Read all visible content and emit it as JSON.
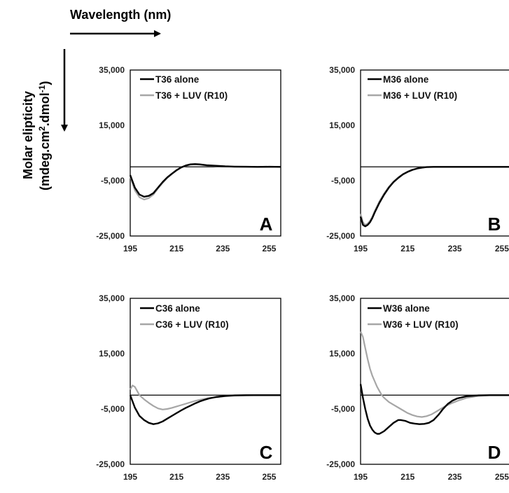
{
  "figure": {
    "x_direction_label": "Wavelength (nm)",
    "y_direction_label_line1": "Molar elipticity",
    "y_direction_label_line2_pre": "(mdeg.cm",
    "y_direction_label_line2_sup1": "2",
    "y_direction_label_line2_mid": ".dmol",
    "y_direction_label_line2_sup2": "-1",
    "y_direction_label_line2_post": ")"
  },
  "colors": {
    "alone": "#000000",
    "luv": "#a6a6a6",
    "zero_line": "#000000",
    "frame": "#000000"
  },
  "chart_data": [
    {
      "type": "line",
      "panel_letter": "A",
      "xlim": [
        195,
        260
      ],
      "ylim": [
        -25000,
        35000
      ],
      "x_ticks": [
        "195",
        "215",
        "235",
        "255"
      ],
      "y_ticks": [
        "35,000",
        "15,000",
        "-5,000",
        "-25,000"
      ],
      "y_tick_values": [
        35000,
        15000,
        -5000,
        -25000
      ],
      "x_tick_values": [
        195,
        215,
        235,
        255
      ],
      "series": [
        {
          "name": "T36 alone",
          "color_key": "alone",
          "x": [
            195,
            197,
            199,
            201,
            203,
            205,
            207,
            209,
            211,
            213,
            215,
            217,
            219,
            221,
            223,
            225,
            228,
            232,
            236,
            240,
            245,
            250,
            255,
            260
          ],
          "y": [
            -3000,
            -7500,
            -10000,
            -10800,
            -10500,
            -9500,
            -7500,
            -5500,
            -3800,
            -2500,
            -1200,
            -200,
            500,
            900,
            1000,
            900,
            600,
            400,
            200,
            100,
            50,
            0,
            50,
            0
          ]
        },
        {
          "name": "T36 + LUV (R10)",
          "color_key": "luv",
          "x": [
            195,
            197,
            199,
            201,
            203,
            205,
            207,
            209,
            211,
            213,
            215,
            217,
            219,
            221,
            223,
            225,
            228,
            232,
            236,
            240,
            245,
            250,
            255,
            260
          ],
          "y": [
            -3500,
            -8500,
            -11000,
            -11800,
            -11300,
            -10000,
            -7800,
            -5800,
            -4000,
            -2600,
            -1300,
            -300,
            400,
            800,
            900,
            800,
            500,
            300,
            150,
            50,
            0,
            0,
            0,
            0
          ]
        }
      ]
    },
    {
      "type": "line",
      "panel_letter": "B",
      "xlim": [
        195,
        258
      ],
      "ylim": [
        -25000,
        35000
      ],
      "x_ticks": [
        "195",
        "215",
        "235",
        "255"
      ],
      "y_ticks": [
        "35,000",
        "15,000",
        "-5,000",
        "-25,000"
      ],
      "y_tick_values": [
        35000,
        15000,
        -5000,
        -25000
      ],
      "x_tick_values": [
        195,
        215,
        235,
        255
      ],
      "series": [
        {
          "name": "M36 alone",
          "color_key": "alone",
          "x": [
            195,
            196,
            197,
            198,
            199,
            200,
            201,
            203,
            205,
            207,
            209,
            211,
            213,
            215,
            217,
            219,
            221,
            223,
            226,
            230,
            235,
            240,
            245,
            250,
            258
          ],
          "y": [
            -18000,
            -21000,
            -21500,
            -21000,
            -20000,
            -18500,
            -16500,
            -13000,
            -10000,
            -7500,
            -5500,
            -4000,
            -2700,
            -1800,
            -1100,
            -600,
            -300,
            -100,
            0,
            0,
            0,
            0,
            0,
            0,
            0
          ]
        },
        {
          "name": "M36 + LUV (R10)",
          "color_key": "luv",
          "x": [
            195,
            196,
            197,
            198,
            199,
            200,
            201,
            203,
            205,
            207,
            209,
            211,
            213,
            215,
            217,
            219,
            221,
            223,
            226,
            230,
            235,
            240,
            245,
            250,
            258
          ],
          "y": [
            -17000,
            -20000,
            -21000,
            -20500,
            -19500,
            -18000,
            -16000,
            -12500,
            -9600,
            -7200,
            -5300,
            -3800,
            -2600,
            -1700,
            -1000,
            -600,
            -300,
            -100,
            0,
            0,
            0,
            0,
            0,
            0,
            0
          ]
        }
      ]
    },
    {
      "type": "line",
      "panel_letter": "C",
      "xlim": [
        195,
        260
      ],
      "ylim": [
        -25000,
        35000
      ],
      "x_ticks": [
        "195",
        "215",
        "235",
        "255"
      ],
      "y_ticks": [
        "35,000",
        "15,000",
        "-5,000",
        "-25,000"
      ],
      "y_tick_values": [
        35000,
        15000,
        -5000,
        -25000
      ],
      "x_tick_values": [
        195,
        215,
        235,
        255
      ],
      "series": [
        {
          "name": "C36 alone",
          "color_key": "alone",
          "x": [
            195,
            197,
            199,
            201,
            203,
            205,
            207,
            209,
            211,
            213,
            215,
            217,
            219,
            221,
            223,
            225,
            227,
            229,
            232,
            236,
            240,
            245,
            250,
            255,
            260
          ],
          "y": [
            0,
            -4500,
            -7500,
            -9000,
            -10000,
            -10500,
            -10200,
            -9500,
            -8500,
            -7500,
            -6500,
            -5500,
            -4600,
            -3800,
            -3000,
            -2300,
            -1700,
            -1200,
            -700,
            -300,
            -100,
            0,
            0,
            0,
            0
          ]
        },
        {
          "name": "C36 + LUV (R10)",
          "color_key": "luv",
          "x": [
            195,
            196,
            197,
            198,
            199,
            201,
            203,
            205,
            207,
            209,
            211,
            213,
            215,
            217,
            219,
            221,
            223,
            225,
            228,
            232,
            236,
            240,
            245,
            250,
            255,
            260
          ],
          "y": [
            2000,
            3500,
            3000,
            1500,
            0,
            -1500,
            -2800,
            -3900,
            -4800,
            -5200,
            -5000,
            -4600,
            -4100,
            -3600,
            -3100,
            -2600,
            -2100,
            -1700,
            -1200,
            -700,
            -400,
            -200,
            -100,
            0,
            0,
            0
          ]
        }
      ]
    },
    {
      "type": "line",
      "panel_letter": "D",
      "xlim": [
        195,
        258
      ],
      "ylim": [
        -25000,
        35000
      ],
      "x_ticks": [
        "195",
        "215",
        "235",
        "255"
      ],
      "y_ticks": [
        "35,000",
        "15,000",
        "-5,000",
        "-25,000"
      ],
      "y_tick_values": [
        35000,
        15000,
        -5000,
        -25000
      ],
      "x_tick_values": [
        195,
        215,
        235,
        255
      ],
      "series": [
        {
          "name": "W36 alone",
          "color_key": "alone",
          "x": [
            195,
            196,
            197,
            198,
            199,
            200,
            201,
            202,
            203,
            204,
            205,
            207,
            209,
            211,
            212,
            214,
            216,
            218,
            220,
            222,
            224,
            226,
            228,
            230,
            232,
            234,
            236,
            240,
            245,
            250,
            258
          ],
          "y": [
            4000,
            -1000,
            -5000,
            -8500,
            -11000,
            -12500,
            -13500,
            -14000,
            -14000,
            -13500,
            -13000,
            -11500,
            -10000,
            -9000,
            -9000,
            -9300,
            -10000,
            -10300,
            -10500,
            -10400,
            -10000,
            -9000,
            -7200,
            -5000,
            -3200,
            -2000,
            -1200,
            -400,
            -100,
            0,
            0
          ]
        },
        {
          "name": "W36 + LUV (R10)",
          "color_key": "luv",
          "x": [
            195,
            196,
            197,
            198,
            199,
            200,
            201,
            202,
            203,
            204,
            205,
            207,
            209,
            211,
            213,
            215,
            217,
            219,
            221,
            223,
            225,
            227,
            229,
            231,
            234,
            237,
            240,
            245,
            250,
            258
          ],
          "y": [
            23000,
            21000,
            17000,
            13000,
            9500,
            7000,
            5000,
            3000,
            1500,
            0,
            -1000,
            -2500,
            -3500,
            -4500,
            -5500,
            -6500,
            -7200,
            -7700,
            -7900,
            -7600,
            -7000,
            -6000,
            -5000,
            -4000,
            -2800,
            -1800,
            -1000,
            -300,
            0,
            0
          ]
        }
      ]
    }
  ]
}
